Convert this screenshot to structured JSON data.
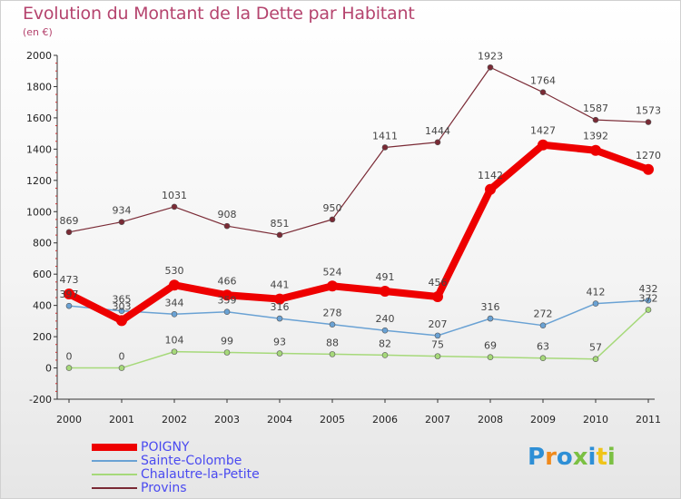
{
  "title": "Evolution du Montant de la Dette par Habitant",
  "unit": "(en €)",
  "brand": {
    "letters": [
      "P",
      "r",
      "o",
      "x",
      "i",
      "t",
      "i"
    ],
    "colors": [
      "#2e8fd6",
      "#f08a1c",
      "#2e8fd6",
      "#7bc043",
      "#2e8fd6",
      "#f0c419",
      "#7bc043"
    ]
  },
  "chart_data": {
    "type": "line",
    "x": [
      "2000",
      "2001",
      "2002",
      "2003",
      "2004",
      "2005",
      "2006",
      "2007",
      "2008",
      "2009",
      "2010",
      "2011"
    ],
    "ylim": [
      -200,
      2000
    ],
    "yticks": [
      "-200",
      "0",
      "200",
      "400",
      "600",
      "800",
      "1000",
      "1200",
      "1400",
      "1600",
      "1800",
      "2000"
    ],
    "grid": false,
    "legend": "bottom-left",
    "series": [
      {
        "name": "POIGNY",
        "color": "#ee0000",
        "values": [
          473,
          303,
          530,
          466,
          441,
          524,
          491,
          456,
          1142,
          1427,
          1392,
          1270
        ],
        "labels": [
          "473",
          "303",
          "530",
          "466",
          "441",
          "524",
          "491",
          "456",
          "1142",
          "1427",
          "1392",
          "1270"
        ]
      },
      {
        "name": "Sainte-Colombe",
        "color": "#6aa2d4",
        "values": [
          397,
          365,
          344,
          359,
          316,
          278,
          240,
          207,
          316,
          272,
          412,
          432
        ],
        "labels": [
          "397",
          "365",
          "344",
          "359",
          "316",
          "278",
          "240",
          "207",
          "316",
          "272",
          "412",
          "432"
        ]
      },
      {
        "name": "Chalautre-la-Petite",
        "color": "#a6d97a",
        "values": [
          0,
          0,
          104,
          99,
          93,
          88,
          82,
          75,
          69,
          63,
          57,
          372
        ],
        "labels": [
          "0",
          "0",
          "104",
          "99",
          "93",
          "88",
          "82",
          "75",
          "69",
          "63",
          "57",
          "372"
        ]
      },
      {
        "name": "Provins",
        "color": "#7a2a35",
        "values": [
          869,
          934,
          1031,
          908,
          851,
          950,
          1411,
          1444,
          1923,
          1764,
          1587,
          1573
        ],
        "labels": [
          "869",
          "934",
          "1031",
          "908",
          "851",
          "950",
          "1411",
          "1444",
          "1923",
          "1764",
          "1587",
          "1573"
        ]
      }
    ]
  }
}
